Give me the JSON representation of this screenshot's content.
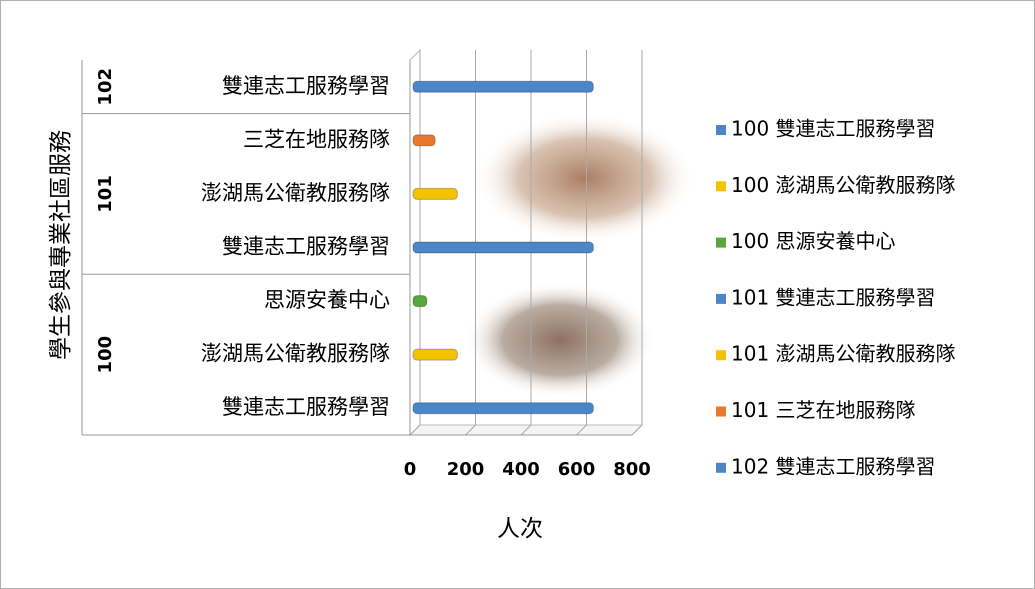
{
  "chart_data": {
    "type": "bar",
    "orientation": "horizontal",
    "y_axis_title": "學生參與專業社區服務",
    "x_axis_title": "人次",
    "groups": [
      {
        "label": "100",
        "categories": [
          "雙連志工服務學習",
          "澎湖馬公衛教服務隊",
          "思源安養中心"
        ]
      },
      {
        "label": "101",
        "categories": [
          "雙連志工服務學習",
          "澎湖馬公衛教服務隊",
          "三芝在地服務隊"
        ]
      },
      {
        "label": "102",
        "categories": [
          "雙連志工服務學習"
        ]
      }
    ],
    "series": [
      {
        "name": "100 雙連志工服務學習",
        "color": "#4a86c8",
        "values": [
          650,
          null,
          null,
          null,
          null,
          null,
          null
        ]
      },
      {
        "name": "100 澎湖馬公衛教服務隊",
        "color": "#f5c200",
        "values": [
          null,
          160,
          null,
          null,
          null,
          null,
          null
        ]
      },
      {
        "name": "100 思源安養中心",
        "color": "#5aa63c",
        "values": [
          null,
          null,
          50,
          null,
          null,
          null,
          null
        ]
      },
      {
        "name": "101 雙連志工服務學習",
        "color": "#4a86c8",
        "values": [
          null,
          null,
          null,
          650,
          null,
          null,
          null
        ]
      },
      {
        "name": "101 澎湖馬公衛教服務隊",
        "color": "#f5c200",
        "values": [
          null,
          null,
          null,
          null,
          160,
          null,
          null
        ]
      },
      {
        "name": "101 三芝在地服務隊",
        "color": "#e8782c",
        "values": [
          null,
          null,
          null,
          null,
          null,
          80,
          null
        ]
      },
      {
        "name": "102 雙連志工服務學習",
        "color": "#4a86c8",
        "values": [
          null,
          null,
          null,
          null,
          null,
          null,
          650
        ]
      }
    ],
    "xlim": [
      0,
      800
    ],
    "xticks": [
      0,
      200,
      400,
      600,
      800
    ],
    "grid": true,
    "legend": "right"
  }
}
